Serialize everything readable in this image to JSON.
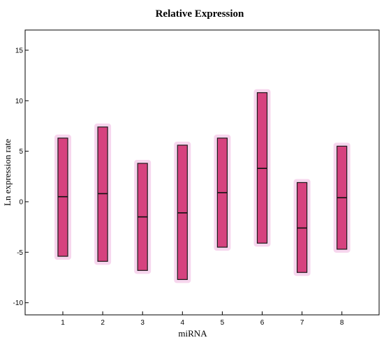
{
  "chart_data": {
    "type": "bar",
    "subtype": "range-bar",
    "title": "Relative Expression",
    "xlabel": "miRNA",
    "ylabel": "Ln expression rate",
    "categories": [
      "1",
      "2",
      "3",
      "4",
      "5",
      "6",
      "7",
      "8"
    ],
    "ylim": [
      -11.2,
      17
    ],
    "yticks": [
      -10,
      -5,
      0,
      5,
      10,
      15
    ],
    "grid": false,
    "legend": "none",
    "bar_color": "#d6427f",
    "series": [
      {
        "low": [
          -5.4,
          -5.9,
          -6.8,
          -7.7,
          -4.5,
          -4.1,
          -7.0,
          -4.7
        ],
        "median": [
          0.5,
          0.8,
          -1.5,
          -1.1,
          0.9,
          3.3,
          -2.6,
          0.4
        ],
        "high": [
          6.3,
          7.4,
          3.8,
          5.6,
          6.3,
          10.8,
          1.9,
          5.5
        ]
      }
    ]
  }
}
